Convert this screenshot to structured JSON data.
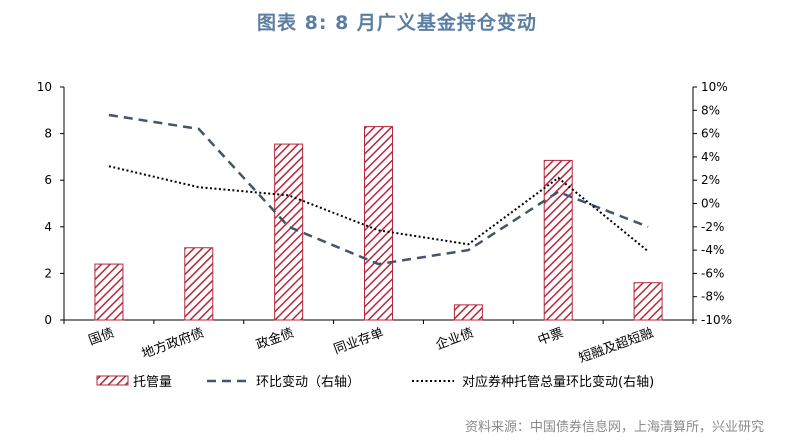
{
  "header": {
    "title": "图表 8:  8 月广义基金持仓变动"
  },
  "footer": {
    "source": "资料来源：中国债券信息网，上海清算所，兴业研究"
  },
  "chart_data": {
    "type": "bar",
    "categories": [
      "国债",
      "地方政府债",
      "政金债",
      "同业存单",
      "企业债",
      "中票",
      "短融及超短融"
    ],
    "series": [
      {
        "name": "托管量",
        "type": "bar",
        "axis": "left",
        "values": [
          2.4,
          3.1,
          7.55,
          8.3,
          0.65,
          6.85,
          1.6
        ]
      },
      {
        "name": "环比变动（右轴）",
        "type": "line",
        "style": "dashed",
        "axis": "right",
        "values": [
          7.6,
          6.4,
          -2.0,
          -5.2,
          -4.0,
          1.0,
          -2.0
        ]
      },
      {
        "name": "对应券种托管总量环比变动(右轴)",
        "type": "line",
        "style": "dotted",
        "axis": "right",
        "values": [
          3.2,
          1.4,
          0.7,
          -2.3,
          -3.5,
          2.2,
          -4.1
        ]
      }
    ],
    "left_axis": {
      "ylim": [
        0,
        10
      ],
      "ticks": [
        "0",
        "2",
        "4",
        "6",
        "8",
        "10"
      ]
    },
    "right_axis": {
      "ylim": [
        -10,
        10
      ],
      "ticks": [
        "-10%",
        "-8%",
        "-6%",
        "-4%",
        "-2%",
        "0%",
        "2%",
        "4%",
        "6%",
        "8%",
        "10%"
      ]
    },
    "grid": false,
    "legend_position": "bottom",
    "colors": {
      "bar": "#b5283c",
      "dashed_line": "#44546a",
      "dotted_line": "#000000"
    }
  }
}
